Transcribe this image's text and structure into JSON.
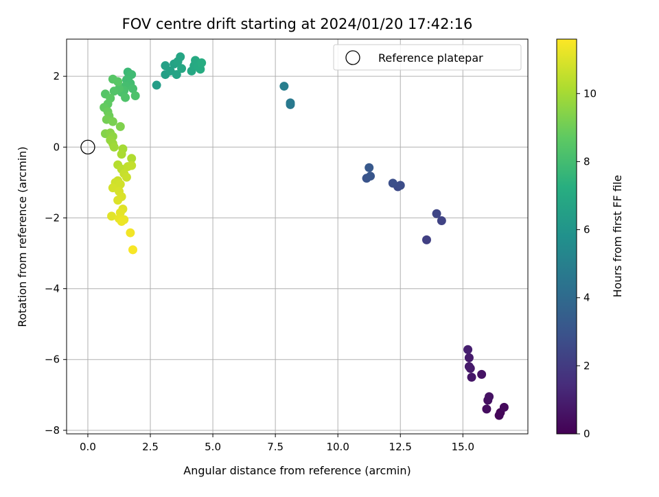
{
  "chart_data": {
    "type": "scatter",
    "title": "FOV centre drift starting at 2024/01/20 17:42:16",
    "xlabel": "Angular distance from reference (arcmin)",
    "ylabel": "Rotation from reference (arcmin)",
    "xlim": [
      -0.85,
      17.6
    ],
    "ylim": [
      -8.1,
      3.05
    ],
    "xticks": [
      0.0,
      2.5,
      5.0,
      7.5,
      10.0,
      12.5,
      15.0
    ],
    "xtick_labels": [
      "0.0",
      "2.5",
      "5.0",
      "7.5",
      "10.0",
      "12.5",
      "15.0"
    ],
    "yticks": [
      2,
      0,
      -2,
      -4,
      -6,
      -8
    ],
    "ytick_labels": [
      "2",
      "0",
      "−2",
      "−4",
      "−6",
      "−8"
    ],
    "grid": true,
    "legend": {
      "placement": "top-right",
      "entries": [
        {
          "label": "Reference platepar",
          "marker": "open-circle"
        }
      ]
    },
    "reference_point": {
      "x": 0.0,
      "y": 0.0
    },
    "colorbar": {
      "label": "Hours from first FF file",
      "colormap": "viridis",
      "range": [
        0,
        11.6
      ],
      "ticks": [
        0,
        2,
        4,
        6,
        8,
        10
      ],
      "tick_labels": [
        "0",
        "2",
        "4",
        "6",
        "8",
        "10"
      ]
    },
    "points": [
      {
        "x": 16.5,
        "y": -7.5,
        "c": 0.1
      },
      {
        "x": 16.45,
        "y": -7.58,
        "c": 0.2
      },
      {
        "x": 16.65,
        "y": -7.35,
        "c": 0.3
      },
      {
        "x": 15.95,
        "y": -7.4,
        "c": 0.4
      },
      {
        "x": 16.0,
        "y": -7.15,
        "c": 0.5
      },
      {
        "x": 16.05,
        "y": -7.05,
        "c": 0.55
      },
      {
        "x": 15.75,
        "y": -6.42,
        "c": 0.6
      },
      {
        "x": 15.35,
        "y": -6.5,
        "c": 0.7
      },
      {
        "x": 15.3,
        "y": -6.25,
        "c": 0.8
      },
      {
        "x": 15.25,
        "y": -6.2,
        "c": 0.85
      },
      {
        "x": 15.25,
        "y": -5.95,
        "c": 0.9
      },
      {
        "x": 15.2,
        "y": -5.72,
        "c": 1.0
      },
      {
        "x": 13.55,
        "y": -2.62,
        "c": 2.2
      },
      {
        "x": 14.15,
        "y": -2.08,
        "c": 2.3
      },
      {
        "x": 13.95,
        "y": -1.88,
        "c": 2.4
      },
      {
        "x": 12.4,
        "y": -1.12,
        "c": 2.6
      },
      {
        "x": 12.5,
        "y": -1.08,
        "c": 2.7
      },
      {
        "x": 12.2,
        "y": -1.02,
        "c": 2.8
      },
      {
        "x": 11.15,
        "y": -0.88,
        "c": 3.0
      },
      {
        "x": 11.3,
        "y": -0.82,
        "c": 3.1
      },
      {
        "x": 11.25,
        "y": -0.58,
        "c": 3.2
      },
      {
        "x": 8.1,
        "y": 1.2,
        "c": 4.6
      },
      {
        "x": 8.1,
        "y": 1.25,
        "c": 4.7
      },
      {
        "x": 7.85,
        "y": 1.72,
        "c": 4.9
      },
      {
        "x": 2.75,
        "y": 1.75,
        "c": 6.4
      },
      {
        "x": 3.1,
        "y": 2.05,
        "c": 6.5
      },
      {
        "x": 3.1,
        "y": 2.3,
        "c": 6.55
      },
      {
        "x": 3.3,
        "y": 2.15,
        "c": 6.6
      },
      {
        "x": 3.45,
        "y": 2.35,
        "c": 6.65
      },
      {
        "x": 3.55,
        "y": 2.05,
        "c": 6.7
      },
      {
        "x": 3.6,
        "y": 2.42,
        "c": 6.75
      },
      {
        "x": 3.7,
        "y": 2.55,
        "c": 6.8
      },
      {
        "x": 3.75,
        "y": 2.22,
        "c": 6.85
      },
      {
        "x": 4.15,
        "y": 2.15,
        "c": 6.9
      },
      {
        "x": 4.25,
        "y": 2.3,
        "c": 6.95
      },
      {
        "x": 4.3,
        "y": 2.45,
        "c": 7.0
      },
      {
        "x": 4.4,
        "y": 2.28,
        "c": 7.05
      },
      {
        "x": 4.5,
        "y": 2.2,
        "c": 7.1
      },
      {
        "x": 4.55,
        "y": 2.38,
        "c": 7.15
      },
      {
        "x": 1.6,
        "y": 2.12,
        "c": 7.8
      },
      {
        "x": 1.65,
        "y": 2.0,
        "c": 7.85
      },
      {
        "x": 1.75,
        "y": 2.05,
        "c": 7.9
      },
      {
        "x": 1.55,
        "y": 1.9,
        "c": 7.95
      },
      {
        "x": 1.7,
        "y": 1.8,
        "c": 8.0
      },
      {
        "x": 1.5,
        "y": 1.72,
        "c": 8.05
      },
      {
        "x": 1.8,
        "y": 1.65,
        "c": 8.1
      },
      {
        "x": 1.45,
        "y": 1.6,
        "c": 8.15
      },
      {
        "x": 1.35,
        "y": 1.55,
        "c": 8.2
      },
      {
        "x": 1.9,
        "y": 1.45,
        "c": 8.25
      },
      {
        "x": 1.5,
        "y": 1.4,
        "c": 8.3
      },
      {
        "x": 1.25,
        "y": 1.65,
        "c": 8.35
      },
      {
        "x": 1.05,
        "y": 1.58,
        "c": 8.4
      },
      {
        "x": 0.7,
        "y": 1.5,
        "c": 8.45
      },
      {
        "x": 1.0,
        "y": 1.92,
        "c": 8.5
      },
      {
        "x": 1.2,
        "y": 1.85,
        "c": 8.55
      },
      {
        "x": 0.9,
        "y": 1.38,
        "c": 8.6
      },
      {
        "x": 0.8,
        "y": 1.22,
        "c": 8.7
      },
      {
        "x": 0.65,
        "y": 1.12,
        "c": 8.8
      },
      {
        "x": 0.8,
        "y": 1.0,
        "c": 8.9
      },
      {
        "x": 0.85,
        "y": 0.88,
        "c": 9.0
      },
      {
        "x": 0.75,
        "y": 0.78,
        "c": 9.1
      },
      {
        "x": 1.0,
        "y": 0.72,
        "c": 9.2
      },
      {
        "x": 1.3,
        "y": 0.58,
        "c": 9.3
      },
      {
        "x": 0.7,
        "y": 0.38,
        "c": 9.4
      },
      {
        "x": 0.9,
        "y": 0.4,
        "c": 9.5
      },
      {
        "x": 1.0,
        "y": 0.3,
        "c": 9.6
      },
      {
        "x": 0.9,
        "y": 0.2,
        "c": 9.7
      },
      {
        "x": 1.0,
        "y": 0.1,
        "c": 9.8
      },
      {
        "x": 1.05,
        "y": 0.0,
        "c": 9.9
      },
      {
        "x": 1.4,
        "y": -0.05,
        "c": 10.0
      },
      {
        "x": 1.35,
        "y": -0.2,
        "c": 10.1
      },
      {
        "x": 1.75,
        "y": -0.32,
        "c": 10.2
      },
      {
        "x": 1.2,
        "y": -0.5,
        "c": 10.3
      },
      {
        "x": 1.35,
        "y": -0.62,
        "c": 10.4
      },
      {
        "x": 1.6,
        "y": -0.55,
        "c": 10.5
      },
      {
        "x": 1.75,
        "y": -0.52,
        "c": 10.55
      },
      {
        "x": 1.45,
        "y": -0.75,
        "c": 10.6
      },
      {
        "x": 1.55,
        "y": -0.85,
        "c": 10.65
      },
      {
        "x": 1.2,
        "y": -0.95,
        "c": 10.7
      },
      {
        "x": 1.1,
        "y": -1.0,
        "c": 10.75
      },
      {
        "x": 1.3,
        "y": -1.05,
        "c": 10.8
      },
      {
        "x": 1.0,
        "y": -1.15,
        "c": 10.85
      },
      {
        "x": 1.25,
        "y": -1.25,
        "c": 10.9
      },
      {
        "x": 1.35,
        "y": -1.4,
        "c": 10.95
      },
      {
        "x": 1.2,
        "y": -1.5,
        "c": 11.0
      },
      {
        "x": 1.4,
        "y": -1.75,
        "c": 11.05
      },
      {
        "x": 0.95,
        "y": -1.95,
        "c": 11.1
      },
      {
        "x": 1.3,
        "y": -1.85,
        "c": 11.15
      },
      {
        "x": 1.25,
        "y": -2.02,
        "c": 11.2
      },
      {
        "x": 1.45,
        "y": -2.05,
        "c": 11.25
      },
      {
        "x": 1.35,
        "y": -2.1,
        "c": 11.3
      },
      {
        "x": 1.7,
        "y": -2.42,
        "c": 11.4
      },
      {
        "x": 1.8,
        "y": -2.9,
        "c": 11.5
      }
    ]
  }
}
